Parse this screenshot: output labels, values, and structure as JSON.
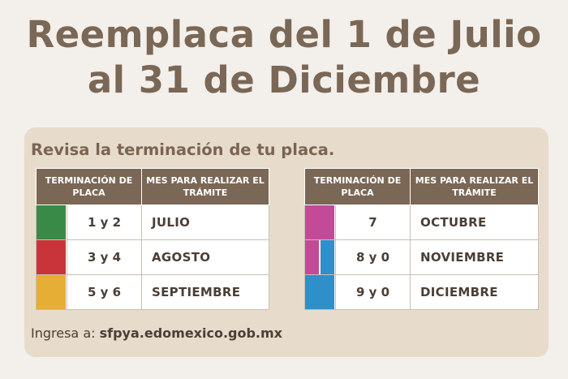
{
  "title": {
    "line1": "Reemplaca del 1 de Julio",
    "line2": "al 31 de Diciembre"
  },
  "subtitle": "Revisa la terminación de tu placa.",
  "headers": {
    "terminacion": "TERMINACIÓN DE PLACA",
    "mes": "MES PARA REALIZAR EL TRÁMITE"
  },
  "left_rows": [
    {
      "terminacion": "1 y 2",
      "mes": "JULIO",
      "colors": [
        "#3a8a47"
      ]
    },
    {
      "terminacion": "3 y 4",
      "mes": "AGOSTO",
      "colors": [
        "#c8343a"
      ]
    },
    {
      "terminacion": "5 y 6",
      "mes": "SEPTIEMBRE",
      "colors": [
        "#e5ae35"
      ]
    }
  ],
  "right_rows": [
    {
      "terminacion": "7",
      "mes": "OCTUBRE",
      "colors": [
        "#c24a97"
      ]
    },
    {
      "terminacion": "8 y 0",
      "mes": "NOVIEMBRE",
      "colors": [
        "#c24a97",
        "#2f8fc8"
      ]
    },
    {
      "terminacion": "9 y 0",
      "mes": "DICIEMBRE",
      "colors": [
        "#2f8fc8"
      ]
    }
  ],
  "footer": {
    "label": "Ingresa a:",
    "url": "sfpya.edomexico.gob.mx"
  }
}
